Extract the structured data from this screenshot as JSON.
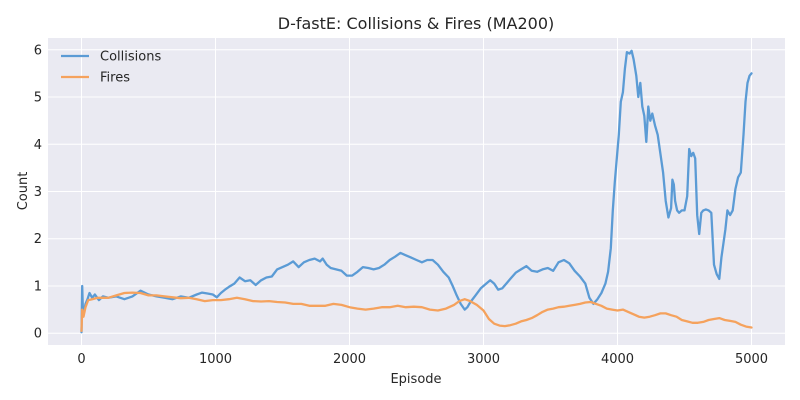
{
  "chart_data": {
    "type": "line",
    "title": "D-fastE: Collisions & Fires (MA200)",
    "xlabel": "Episode",
    "ylabel": "Count",
    "xlim": [
      -250,
      5250
    ],
    "ylim": [
      -0.25,
      6.25
    ],
    "xticks": [
      0,
      1000,
      2000,
      3000,
      4000,
      5000
    ],
    "yticks": [
      0,
      1,
      2,
      3,
      4,
      5,
      6
    ],
    "grid": true,
    "legend_position": "top-left",
    "background": "#eaeaf2",
    "series": [
      {
        "name": "Collisions",
        "color": "#5b9bd5",
        "points": [
          [
            0,
            0.02
          ],
          [
            5,
            1.0
          ],
          [
            10,
            0.55
          ],
          [
            20,
            0.45
          ],
          [
            30,
            0.62
          ],
          [
            45,
            0.72
          ],
          [
            60,
            0.85
          ],
          [
            80,
            0.75
          ],
          [
            100,
            0.82
          ],
          [
            130,
            0.7
          ],
          [
            160,
            0.78
          ],
          [
            200,
            0.75
          ],
          [
            260,
            0.78
          ],
          [
            320,
            0.72
          ],
          [
            380,
            0.78
          ],
          [
            440,
            0.9
          ],
          [
            500,
            0.82
          ],
          [
            560,
            0.78
          ],
          [
            620,
            0.75
          ],
          [
            680,
            0.72
          ],
          [
            740,
            0.78
          ],
          [
            800,
            0.75
          ],
          [
            860,
            0.82
          ],
          [
            900,
            0.86
          ],
          [
            940,
            0.84
          ],
          [
            980,
            0.82
          ],
          [
            1010,
            0.76
          ],
          [
            1040,
            0.85
          ],
          [
            1070,
            0.92
          ],
          [
            1100,
            0.98
          ],
          [
            1140,
            1.05
          ],
          [
            1180,
            1.18
          ],
          [
            1220,
            1.1
          ],
          [
            1260,
            1.12
          ],
          [
            1300,
            1.02
          ],
          [
            1340,
            1.12
          ],
          [
            1380,
            1.18
          ],
          [
            1420,
            1.2
          ],
          [
            1460,
            1.35
          ],
          [
            1500,
            1.4
          ],
          [
            1540,
            1.45
          ],
          [
            1580,
            1.52
          ],
          [
            1620,
            1.4
          ],
          [
            1660,
            1.5
          ],
          [
            1700,
            1.55
          ],
          [
            1740,
            1.58
          ],
          [
            1780,
            1.52
          ],
          [
            1800,
            1.58
          ],
          [
            1830,
            1.45
          ],
          [
            1860,
            1.38
          ],
          [
            1900,
            1.35
          ],
          [
            1940,
            1.32
          ],
          [
            1980,
            1.22
          ],
          [
            2020,
            1.22
          ],
          [
            2060,
            1.3
          ],
          [
            2100,
            1.4
          ],
          [
            2140,
            1.38
          ],
          [
            2180,
            1.35
          ],
          [
            2220,
            1.38
          ],
          [
            2260,
            1.45
          ],
          [
            2300,
            1.55
          ],
          [
            2340,
            1.62
          ],
          [
            2380,
            1.7
          ],
          [
            2420,
            1.65
          ],
          [
            2460,
            1.6
          ],
          [
            2500,
            1.55
          ],
          [
            2540,
            1.5
          ],
          [
            2580,
            1.55
          ],
          [
            2620,
            1.55
          ],
          [
            2660,
            1.45
          ],
          [
            2700,
            1.3
          ],
          [
            2740,
            1.18
          ],
          [
            2770,
            1.0
          ],
          [
            2800,
            0.8
          ],
          [
            2830,
            0.62
          ],
          [
            2860,
            0.5
          ],
          [
            2880,
            0.55
          ],
          [
            2900,
            0.65
          ],
          [
            2940,
            0.8
          ],
          [
            2980,
            0.95
          ],
          [
            3020,
            1.05
          ],
          [
            3050,
            1.12
          ],
          [
            3080,
            1.05
          ],
          [
            3110,
            0.92
          ],
          [
            3140,
            0.95
          ],
          [
            3170,
            1.05
          ],
          [
            3200,
            1.15
          ],
          [
            3240,
            1.28
          ],
          [
            3280,
            1.35
          ],
          [
            3320,
            1.42
          ],
          [
            3360,
            1.32
          ],
          [
            3400,
            1.3
          ],
          [
            3440,
            1.35
          ],
          [
            3480,
            1.38
          ],
          [
            3520,
            1.32
          ],
          [
            3560,
            1.5
          ],
          [
            3600,
            1.55
          ],
          [
            3640,
            1.48
          ],
          [
            3680,
            1.32
          ],
          [
            3720,
            1.2
          ],
          [
            3760,
            1.05
          ],
          [
            3790,
            0.75
          ],
          [
            3820,
            0.62
          ],
          [
            3850,
            0.72
          ],
          [
            3880,
            0.85
          ],
          [
            3910,
            1.05
          ],
          [
            3930,
            1.3
          ],
          [
            3950,
            1.8
          ],
          [
            3965,
            2.6
          ],
          [
            3980,
            3.2
          ],
          [
            3995,
            3.7
          ],
          [
            4010,
            4.2
          ],
          [
            4025,
            4.9
          ],
          [
            4040,
            5.1
          ],
          [
            4055,
            5.6
          ],
          [
            4070,
            5.95
          ],
          [
            4090,
            5.92
          ],
          [
            4105,
            5.98
          ],
          [
            4120,
            5.8
          ],
          [
            4140,
            5.45
          ],
          [
            4155,
            5.0
          ],
          [
            4170,
            5.3
          ],
          [
            4185,
            4.8
          ],
          [
            4200,
            4.6
          ],
          [
            4215,
            4.05
          ],
          [
            4230,
            4.8
          ],
          [
            4245,
            4.5
          ],
          [
            4260,
            4.65
          ],
          [
            4280,
            4.4
          ],
          [
            4300,
            4.2
          ],
          [
            4320,
            3.8
          ],
          [
            4340,
            3.4
          ],
          [
            4360,
            2.8
          ],
          [
            4380,
            2.45
          ],
          [
            4400,
            2.65
          ],
          [
            4410,
            3.25
          ],
          [
            4420,
            3.15
          ],
          [
            4430,
            2.8
          ],
          [
            4445,
            2.6
          ],
          [
            4460,
            2.55
          ],
          [
            4480,
            2.6
          ],
          [
            4500,
            2.6
          ],
          [
            4520,
            2.9
          ],
          [
            4535,
            3.9
          ],
          [
            4550,
            3.75
          ],
          [
            4565,
            3.82
          ],
          [
            4580,
            3.7
          ],
          [
            4595,
            2.5
          ],
          [
            4610,
            2.1
          ],
          [
            4625,
            2.55
          ],
          [
            4640,
            2.6
          ],
          [
            4660,
            2.62
          ],
          [
            4680,
            2.6
          ],
          [
            4700,
            2.55
          ],
          [
            4720,
            1.45
          ],
          [
            4740,
            1.25
          ],
          [
            4760,
            1.15
          ],
          [
            4775,
            1.6
          ],
          [
            4790,
            1.9
          ],
          [
            4805,
            2.2
          ],
          [
            4820,
            2.6
          ],
          [
            4840,
            2.5
          ],
          [
            4860,
            2.6
          ],
          [
            4880,
            3.05
          ],
          [
            4900,
            3.3
          ],
          [
            4920,
            3.4
          ],
          [
            4940,
            4.2
          ],
          [
            4955,
            4.9
          ],
          [
            4970,
            5.3
          ],
          [
            4985,
            5.45
          ],
          [
            5000,
            5.5
          ]
        ]
      },
      {
        "name": "Fires",
        "color": "#f5a25d",
        "points": [
          [
            0,
            0.05
          ],
          [
            5,
            0.5
          ],
          [
            15,
            0.35
          ],
          [
            30,
            0.55
          ],
          [
            50,
            0.7
          ],
          [
            80,
            0.72
          ],
          [
            120,
            0.75
          ],
          [
            160,
            0.75
          ],
          [
            200,
            0.75
          ],
          [
            260,
            0.8
          ],
          [
            320,
            0.85
          ],
          [
            380,
            0.86
          ],
          [
            440,
            0.85
          ],
          [
            500,
            0.8
          ],
          [
            560,
            0.8
          ],
          [
            620,
            0.78
          ],
          [
            680,
            0.76
          ],
          [
            740,
            0.74
          ],
          [
            800,
            0.75
          ],
          [
            860,
            0.72
          ],
          [
            920,
            0.68
          ],
          [
            980,
            0.7
          ],
          [
            1040,
            0.7
          ],
          [
            1100,
            0.72
          ],
          [
            1160,
            0.75
          ],
          [
            1220,
            0.72
          ],
          [
            1280,
            0.68
          ],
          [
            1340,
            0.67
          ],
          [
            1400,
            0.68
          ],
          [
            1460,
            0.66
          ],
          [
            1520,
            0.65
          ],
          [
            1580,
            0.62
          ],
          [
            1640,
            0.62
          ],
          [
            1700,
            0.58
          ],
          [
            1760,
            0.58
          ],
          [
            1820,
            0.58
          ],
          [
            1880,
            0.62
          ],
          [
            1940,
            0.6
          ],
          [
            2000,
            0.55
          ],
          [
            2060,
            0.52
          ],
          [
            2120,
            0.5
          ],
          [
            2180,
            0.52
          ],
          [
            2240,
            0.55
          ],
          [
            2300,
            0.55
          ],
          [
            2360,
            0.58
          ],
          [
            2420,
            0.55
          ],
          [
            2480,
            0.56
          ],
          [
            2540,
            0.55
          ],
          [
            2600,
            0.5
          ],
          [
            2660,
            0.48
          ],
          [
            2720,
            0.52
          ],
          [
            2780,
            0.6
          ],
          [
            2820,
            0.68
          ],
          [
            2860,
            0.72
          ],
          [
            2900,
            0.68
          ],
          [
            2950,
            0.6
          ],
          [
            3000,
            0.48
          ],
          [
            3040,
            0.3
          ],
          [
            3080,
            0.2
          ],
          [
            3120,
            0.16
          ],
          [
            3160,
            0.15
          ],
          [
            3200,
            0.17
          ],
          [
            3240,
            0.2
          ],
          [
            3280,
            0.25
          ],
          [
            3320,
            0.28
          ],
          [
            3360,
            0.32
          ],
          [
            3400,
            0.38
          ],
          [
            3440,
            0.45
          ],
          [
            3480,
            0.5
          ],
          [
            3520,
            0.52
          ],
          [
            3560,
            0.55
          ],
          [
            3600,
            0.56
          ],
          [
            3640,
            0.58
          ],
          [
            3680,
            0.6
          ],
          [
            3720,
            0.62
          ],
          [
            3760,
            0.65
          ],
          [
            3800,
            0.66
          ],
          [
            3840,
            0.62
          ],
          [
            3880,
            0.58
          ],
          [
            3920,
            0.52
          ],
          [
            3960,
            0.5
          ],
          [
            4000,
            0.48
          ],
          [
            4040,
            0.5
          ],
          [
            4080,
            0.45
          ],
          [
            4120,
            0.4
          ],
          [
            4160,
            0.35
          ],
          [
            4200,
            0.33
          ],
          [
            4240,
            0.35
          ],
          [
            4280,
            0.38
          ],
          [
            4320,
            0.42
          ],
          [
            4360,
            0.42
          ],
          [
            4400,
            0.38
          ],
          [
            4440,
            0.35
          ],
          [
            4480,
            0.28
          ],
          [
            4520,
            0.25
          ],
          [
            4560,
            0.22
          ],
          [
            4600,
            0.22
          ],
          [
            4640,
            0.24
          ],
          [
            4680,
            0.28
          ],
          [
            4720,
            0.3
          ],
          [
            4760,
            0.32
          ],
          [
            4800,
            0.28
          ],
          [
            4840,
            0.26
          ],
          [
            4880,
            0.24
          ],
          [
            4920,
            0.18
          ],
          [
            4960,
            0.14
          ],
          [
            5000,
            0.12
          ]
        ]
      }
    ]
  }
}
